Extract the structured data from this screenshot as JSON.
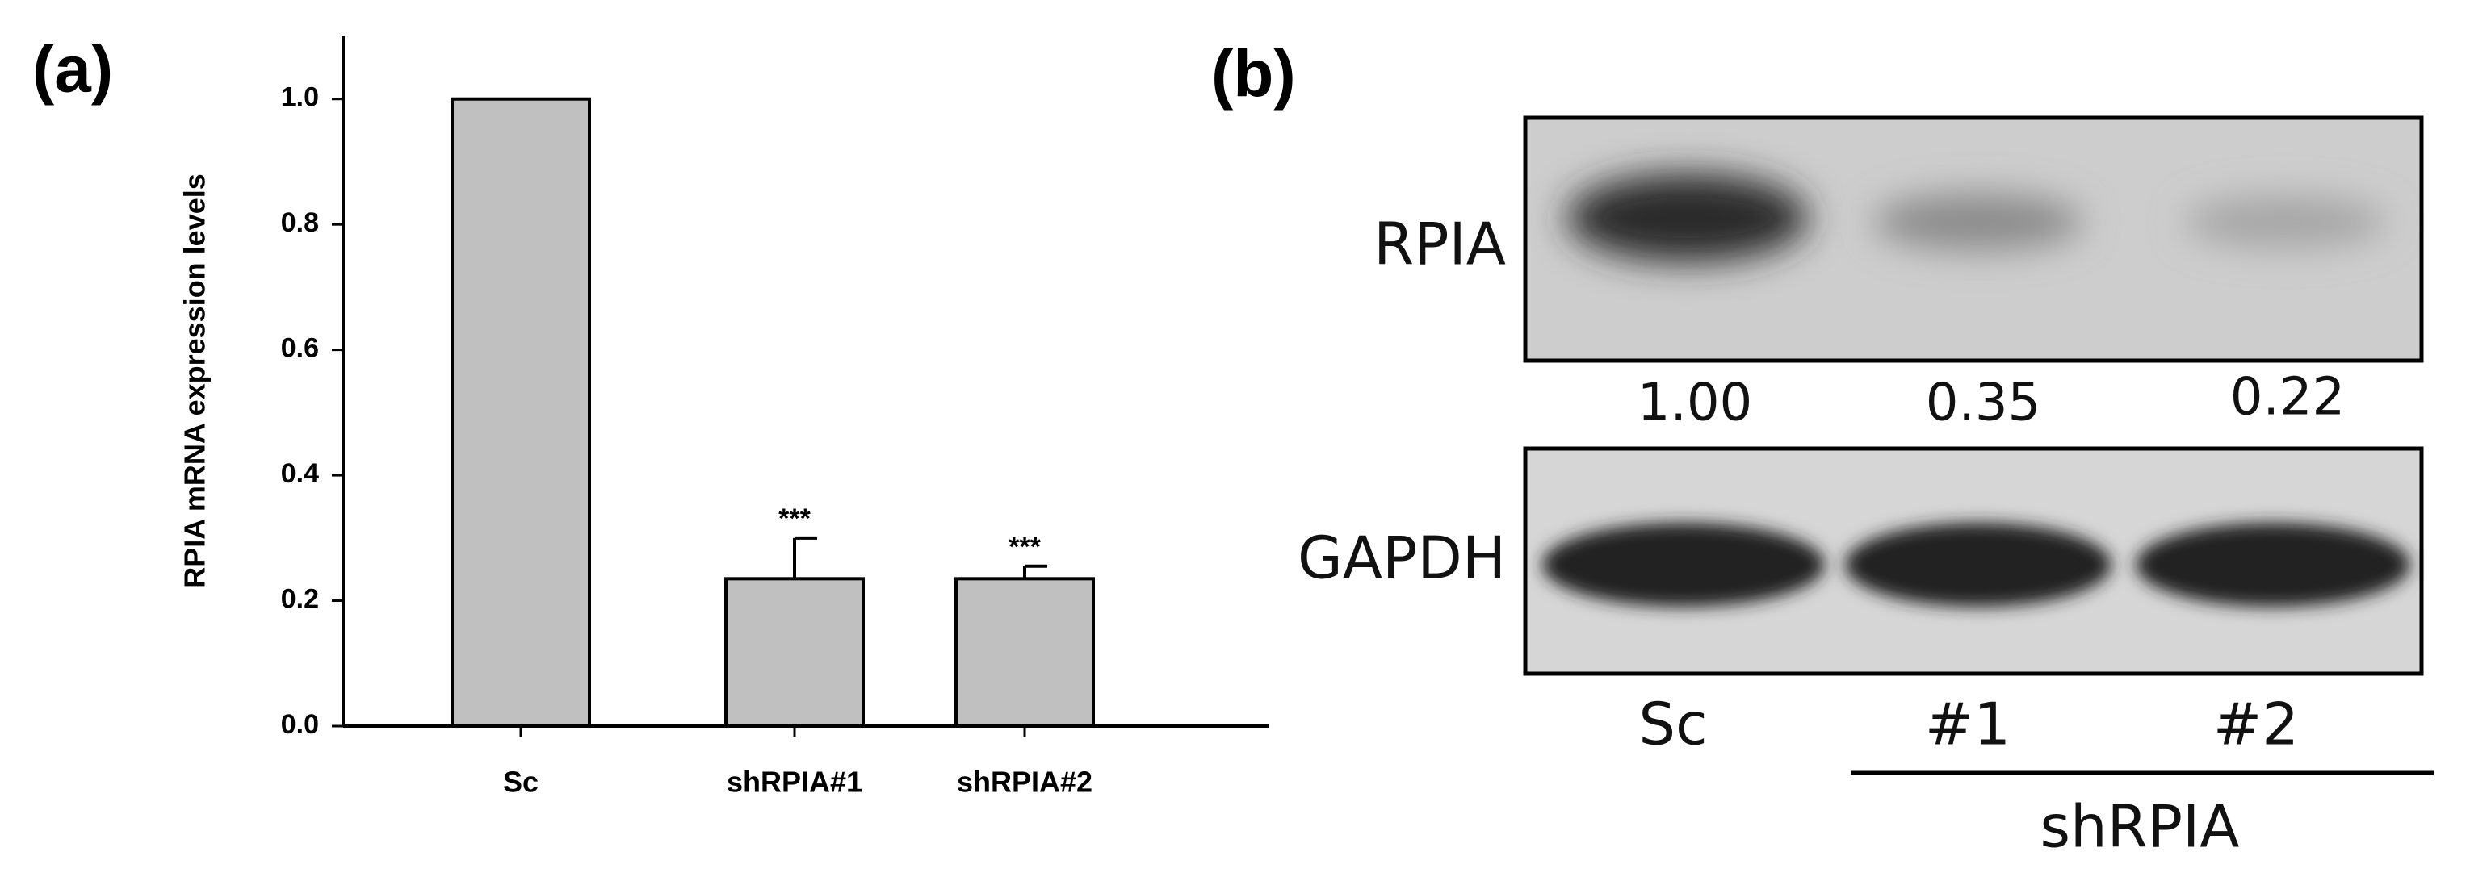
{
  "chart_data": {
    "type": "bar",
    "panel_label": "(a)",
    "y_label": "RPIA mRNA expression levels",
    "categories": [
      "Sc",
      "shRPIA#1",
      "shRPIA#2"
    ],
    "values": [
      1.0,
      0.235,
      0.235
    ],
    "errors": [
      null,
      0.065,
      0.02
    ],
    "annotations": [
      null,
      "***",
      "***"
    ],
    "color": "#c0c0c0",
    "ylim": [
      0,
      1.1
    ],
    "yticks": [
      {
        "value": 0,
        "label": "0.0"
      },
      {
        "value": 0.2,
        "label": "0.2"
      },
      {
        "value": 0.4,
        "label": "0.4"
      },
      {
        "value": 0.6,
        "label": "0.6"
      },
      {
        "value": 0.8,
        "label": "0.8"
      },
      {
        "value": 1.0,
        "label": "1.0"
      }
    ]
  },
  "blot": {
    "panel_label": "(b)",
    "rows": [
      "RPIA",
      "GAPDH"
    ],
    "quantification": [
      "1.00",
      "0.35",
      "0.22"
    ],
    "lanes": [
      "Sc",
      "#1",
      "#2"
    ],
    "group_label": "shRPIA"
  }
}
